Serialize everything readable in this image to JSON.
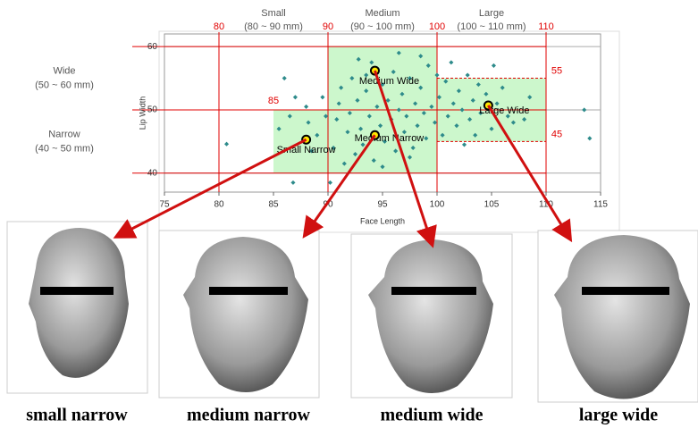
{
  "chart_data": {
    "type": "scatter",
    "x_label": "Face Length",
    "y_label": "Lip Width",
    "xlim": [
      75,
      115
    ],
    "ylim": [
      37,
      62
    ],
    "xticks": [
      75,
      80,
      85,
      90,
      95,
      100,
      105,
      110,
      115
    ],
    "yticks": [
      40,
      50,
      60
    ],
    "grid": true,
    "x_ref_lines": [
      80,
      90,
      100,
      110
    ],
    "size_classes": [
      {
        "name": "Small",
        "range": "(80 ~ 90 mm)"
      },
      {
        "name": "Medium",
        "range": "(90 ~ 100 mm)"
      },
      {
        "name": "Large",
        "range": "(100 ~ 110 mm)"
      }
    ],
    "width_classes": [
      {
        "name": "Wide",
        "range": "(50 ~ 60 mm)"
      },
      {
        "name": "Narrow",
        "range": "(40 ~ 50 mm)"
      }
    ],
    "zones": [
      {
        "xlim": [
          85,
          90
        ],
        "ylim": [
          40,
          50
        ]
      },
      {
        "xlim": [
          90,
          100
        ],
        "ylim": [
          40,
          60
        ]
      },
      {
        "xlim": [
          100,
          110
        ],
        "ylim": [
          45,
          55
        ]
      }
    ],
    "zone_color": "#ccf7cc",
    "series": [
      {
        "color": "#2e8b8b",
        "x": [
          85.5,
          86.5,
          87,
          86,
          86.8,
          80.7,
          88.2,
          88.5,
          89,
          89.5,
          88,
          90.5,
          90.8,
          91,
          91.2,
          91.5,
          91.8,
          92,
          92.2,
          92.5,
          92.7,
          93,
          93.2,
          93.5,
          93.8,
          94,
          94.2,
          94.5,
          94.8,
          95,
          95.2,
          95.5,
          95.8,
          96,
          96.2,
          96.5,
          96.8,
          97,
          97.2,
          97.5,
          97.8,
          98,
          98.2,
          98.5,
          98.8,
          99,
          99.2,
          99.5,
          99.8,
          100.2,
          100.5,
          100.8,
          101,
          101.3,
          101.5,
          101.8,
          102,
          102.3,
          102.5,
          102.8,
          103,
          103.3,
          103.5,
          103.8,
          104,
          104.5,
          105,
          105.2,
          105.5,
          106,
          106.5,
          107,
          108,
          108.5,
          113.5,
          114,
          90.2,
          92.8,
          96.5,
          95,
          97.5,
          100,
          98.5,
          93.5,
          89.8
        ],
        "values": [
          47,
          49,
          52,
          55,
          38.5,
          44.6,
          48,
          43.5,
          46,
          52,
          50.5,
          44,
          48.5,
          51,
          53.5,
          41.5,
          46.5,
          49.5,
          55,
          43,
          51.5,
          47,
          44.5,
          53,
          49,
          57.5,
          42,
          50.5,
          47.5,
          54,
          45,
          51.5,
          48.5,
          56,
          43.5,
          50,
          52.5,
          46.5,
          49,
          55,
          44,
          51,
          47.5,
          53.5,
          49.5,
          45.5,
          57,
          50.5,
          48,
          52,
          46,
          54.5,
          49,
          57.5,
          51,
          47.5,
          53,
          50,
          44.5,
          55.5,
          48.5,
          51.5,
          46,
          54,
          49.5,
          52.5,
          47,
          57,
          51,
          53.5,
          49,
          48,
          48.5,
          52,
          50,
          45.5,
          38.5,
          58,
          59,
          41,
          42.5,
          55.5,
          58.5,
          55.5,
          49
        ]
      }
    ],
    "highlights": [
      {
        "label": "Small Narrow",
        "x": 88,
        "y": 45.3
      },
      {
        "label": "Medium Narrow",
        "x": 94.3,
        "y": 46
      },
      {
        "label": "Medium Wide",
        "x": 94.3,
        "y": 56.2
      },
      {
        "label": "Large Wide",
        "x": 104.7,
        "y": 50.7
      }
    ],
    "captions": [
      "small narrow",
      "medium narrow",
      "medium wide",
      "large wide"
    ]
  }
}
